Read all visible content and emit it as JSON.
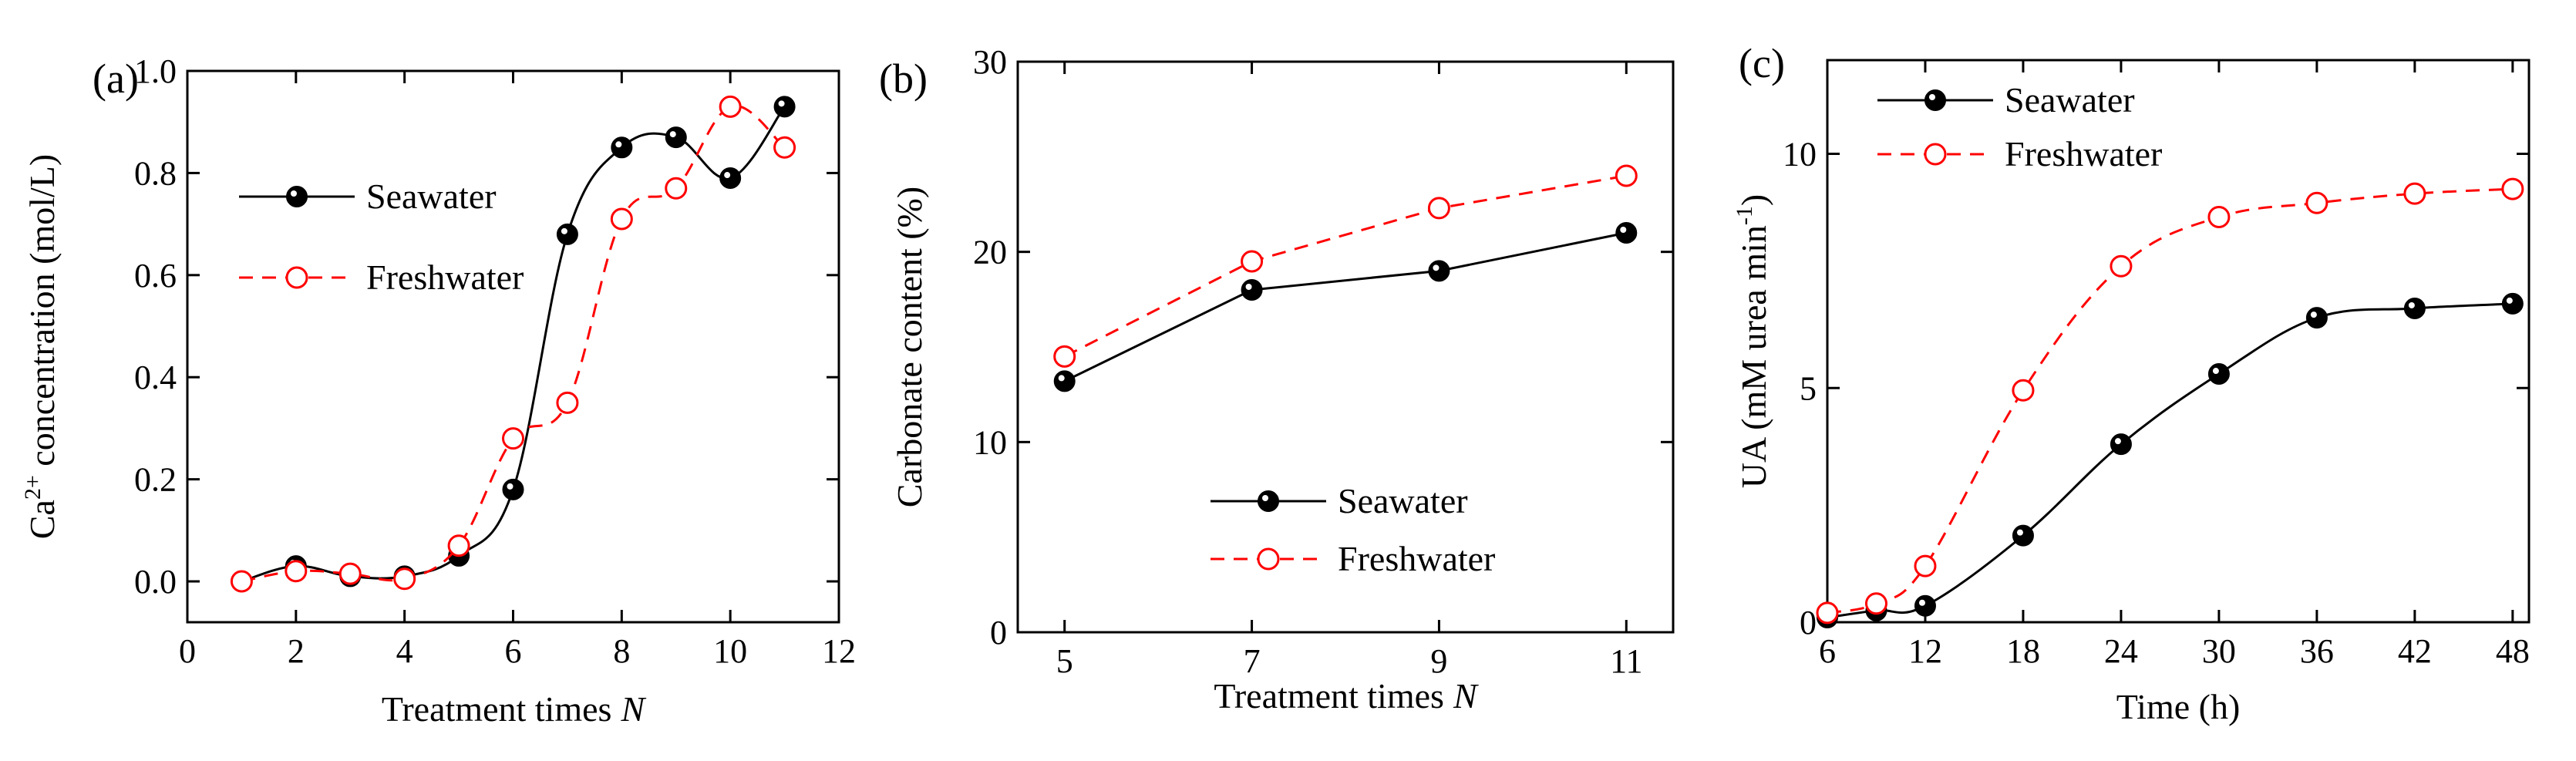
{
  "figure": {
    "colors": {
      "seawater": "#000000",
      "freshwater": "#ff0000",
      "axis": "#000000"
    },
    "icons": {
      "seawater_marker": "filled-circle-icon",
      "freshwater_marker": "open-circle-icon"
    }
  },
  "chart_data": [
    {
      "panel_label": "(a)",
      "type": "line",
      "xlabel": "Treatment times",
      "xlabel_var": "N",
      "ylabel_prefix": "Ca",
      "ylabel_sup": "2+",
      "ylabel_suffix": " concentration (mol/L)",
      "xlim": [
        0,
        12
      ],
      "ylim": [
        -0.08,
        1.0
      ],
      "xticks": [
        0,
        2,
        4,
        6,
        8,
        10,
        12
      ],
      "xtick_labels": [
        "0",
        "2",
        "4",
        "6",
        "8",
        "10",
        "12"
      ],
      "yticks": [
        0.0,
        0.2,
        0.4,
        0.6,
        0.8,
        1.0
      ],
      "ytick_labels": [
        "0.0",
        "0.2",
        "0.4",
        "0.6",
        "0.8",
        "1.0"
      ],
      "legend_position": "center-left",
      "smooth": true,
      "series": [
        {
          "name": "Seawater",
          "style": "solid",
          "marker": "filled",
          "x": [
            1,
            2,
            3,
            4,
            5,
            6,
            7,
            8,
            9,
            10,
            11
          ],
          "y": [
            0.0,
            0.03,
            0.01,
            0.01,
            0.05,
            0.18,
            0.68,
            0.85,
            0.87,
            0.79,
            0.93
          ]
        },
        {
          "name": "Freshwater",
          "style": "dashed",
          "marker": "open",
          "x": [
            1,
            2,
            3,
            4,
            5,
            6,
            7,
            8,
            9,
            10,
            11
          ],
          "y": [
            0.0,
            0.02,
            0.015,
            0.005,
            0.07,
            0.28,
            0.35,
            0.71,
            0.77,
            0.93,
            0.85
          ]
        }
      ]
    },
    {
      "panel_label": "(b)",
      "type": "line",
      "xlabel": "Treatment times",
      "xlabel_var": "N",
      "ylabel": "Carbonate content (%)",
      "xlim": [
        4.5,
        11.5
      ],
      "ylim": [
        0,
        30
      ],
      "xticks": [
        5,
        7,
        9,
        11
      ],
      "xtick_labels": [
        "5",
        "7",
        "9",
        "11"
      ],
      "yticks": [
        0,
        10,
        20,
        30
      ],
      "ytick_labels": [
        "0",
        "10",
        "20",
        "30"
      ],
      "legend_position": "lower-right",
      "smooth": false,
      "series": [
        {
          "name": "Seawater",
          "style": "solid",
          "marker": "filled",
          "x": [
            5,
            7,
            9,
            11
          ],
          "y": [
            13.2,
            18.0,
            19.0,
            21.0
          ]
        },
        {
          "name": "Freshwater",
          "style": "dashed",
          "marker": "open",
          "x": [
            5,
            7,
            9,
            11
          ],
          "y": [
            14.5,
            19.5,
            22.3,
            24.0
          ]
        }
      ]
    },
    {
      "panel_label": "(c)",
      "type": "line",
      "xlabel": "Time (h)",
      "ylabel_prefix": "UA (mM urea min",
      "ylabel_sup": "-1",
      "ylabel_suffix": ")",
      "xlim": [
        6,
        49
      ],
      "ylim": [
        0,
        12
      ],
      "xticks": [
        6,
        12,
        18,
        24,
        30,
        36,
        42,
        48
      ],
      "xtick_labels": [
        "6",
        "12",
        "18",
        "24",
        "30",
        "36",
        "42",
        "48"
      ],
      "yticks": [
        0,
        5,
        10
      ],
      "ytick_labels": [
        "0",
        "5",
        "10"
      ],
      "legend_position": "top-left",
      "smooth": true,
      "series": [
        {
          "name": "Seawater",
          "style": "solid",
          "marker": "filled",
          "x": [
            6,
            9,
            12,
            18,
            24,
            30,
            36,
            42,
            48
          ],
          "y": [
            0.1,
            0.25,
            0.35,
            1.85,
            3.8,
            5.3,
            6.5,
            6.7,
            6.8
          ]
        },
        {
          "name": "Freshwater",
          "style": "dashed",
          "marker": "open",
          "x": [
            6,
            9,
            12,
            18,
            24,
            30,
            36,
            42,
            48
          ],
          "y": [
            0.2,
            0.4,
            1.2,
            4.95,
            7.6,
            8.65,
            8.95,
            9.15,
            9.25
          ]
        }
      ]
    }
  ]
}
